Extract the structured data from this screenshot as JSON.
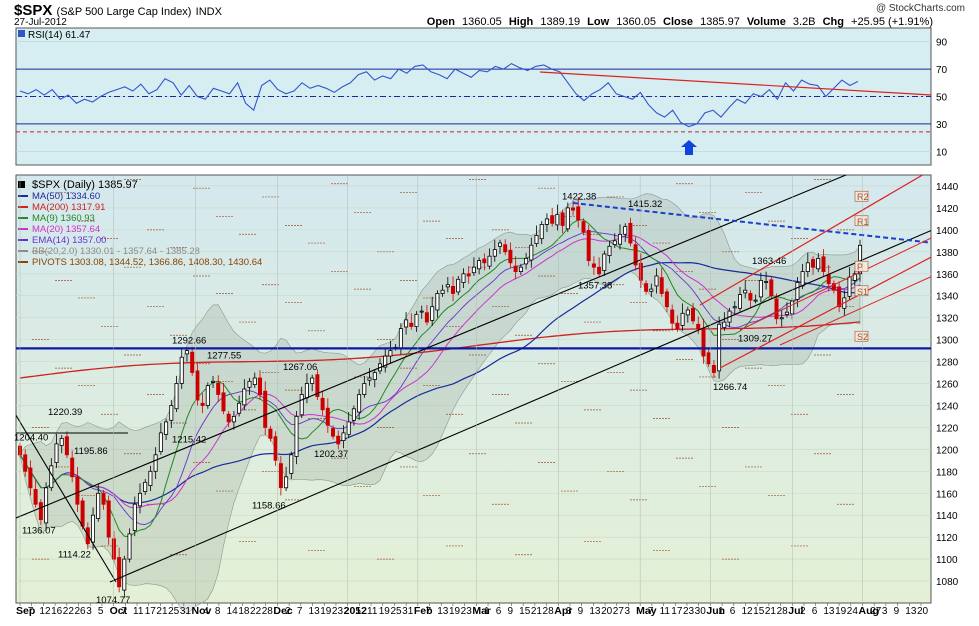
{
  "header": {
    "symbol": "$SPX",
    "name": "(S&P 500 Large Cap Index)",
    "exchange": "INDX",
    "date": "27-Jul-2012",
    "copyright": "@ StockCharts.com",
    "open_label": "Open",
    "open": "1360.05",
    "high_label": "High",
    "high": "1389.19",
    "low_label": "Low",
    "low": "1360.05",
    "close_label": "Close",
    "close": "1385.97",
    "volume_label": "Volume",
    "volume": "3.2B",
    "chg_label": "Chg",
    "chg": "+25.95 (+1.91%)"
  },
  "colors": {
    "rsi_bg": "#d6eef2",
    "price_bg": "#dcebdc",
    "candle_up": "#000000",
    "candle_down": "#cc0000",
    "rsi_line": "#3355cc",
    "ma50": "#1a2a99",
    "ma200": "#cc2222",
    "ma9": "#228822",
    "ma20": "#cc33cc",
    "support": "#0a1aa6",
    "trend_blue": "#1a3fcc",
    "channel_red": "#dd2222"
  },
  "chart_data": [
    {
      "type": "line",
      "title": "RSI(14) 61.47",
      "ylim": [
        0,
        100
      ],
      "ticks": [
        "90",
        "70",
        "50",
        "30",
        "10"
      ],
      "levels": [
        70,
        50,
        30
      ],
      "series": [
        {
          "name": "RSI(14)",
          "values": [
            54,
            52,
            55,
            51,
            55,
            48,
            51,
            45,
            48,
            46,
            50,
            53,
            55,
            57,
            54,
            59,
            52,
            55,
            63,
            60,
            51,
            58,
            50,
            48,
            56,
            54,
            52,
            60,
            45,
            40,
            58,
            62,
            55,
            52,
            54,
            60,
            56,
            58,
            56,
            53,
            57,
            60,
            66,
            68,
            62,
            65,
            63,
            70,
            67,
            72,
            73,
            68,
            66,
            63,
            70,
            67,
            64,
            69,
            68,
            72,
            70,
            74,
            71,
            69,
            72,
            73,
            70,
            68,
            60,
            52,
            47,
            52,
            55,
            60,
            52,
            50,
            48,
            53,
            44,
            38,
            35,
            40,
            31,
            28,
            30,
            38,
            40,
            35,
            42,
            48,
            45,
            52,
            50,
            55,
            48,
            60,
            54,
            62,
            59,
            58,
            50,
            56,
            62,
            58,
            61
          ]
        }
      ]
    },
    {
      "type": "candlestick",
      "title": "$SPX (Daily) 1385.97",
      "ylim": [
        1060,
        1450
      ],
      "y_ticks": [
        1080,
        1100,
        1120,
        1140,
        1160,
        1180,
        1200,
        1220,
        1240,
        1260,
        1280,
        1300,
        1320,
        1340,
        1360,
        1380,
        1400,
        1420,
        1440
      ],
      "x_tick_labels": [
        "Sep",
        "7",
        "12",
        "16",
        "22",
        "26",
        "3",
        "5",
        "Oct",
        "7",
        "11",
        "17",
        "21",
        "25",
        "31",
        "Nov",
        "4",
        "8",
        "14",
        "18",
        "22",
        "28",
        "Dec",
        "2",
        "7",
        "13",
        "19",
        "23",
        "2012",
        "5",
        "11",
        "19",
        "25",
        "31",
        "Feb",
        "7",
        "13",
        "19",
        "23",
        "Mar",
        "1",
        "6",
        "9",
        "15",
        "21",
        "28",
        "Apr",
        "3",
        "9",
        "13",
        "20",
        "27",
        "3",
        "May",
        "7",
        "11",
        "17",
        "23",
        "30",
        "Jun",
        "1",
        "6",
        "12",
        "15",
        "21",
        "28",
        "Jul",
        "2",
        "6",
        "13",
        "19",
        "24",
        "Aug",
        "27",
        "3",
        "9",
        "13",
        "20"
      ],
      "legend": [
        {
          "name": "$SPX (Daily) 1385.97",
          "color": "#000000"
        },
        {
          "name": "MA(50) 1334.60",
          "color": "#1a2a99"
        },
        {
          "name": "MA(200) 1317.91",
          "color": "#cc2222"
        },
        {
          "name": "MA(9) 1360.93",
          "color": "#228822"
        },
        {
          "name": "MA(20) 1357.64",
          "color": "#cc33cc"
        },
        {
          "name": "EMA(14) 1357.00",
          "color": "#6633cc"
        },
        {
          "name": "BB(20,2.0) 1330.01 - 1357.64 - 1385.28",
          "color": "#8a8a8a"
        },
        {
          "name": "PIVOTS 1303.08, 1344.52, 1366.86, 1408.30, 1430.64",
          "color": "#884400"
        }
      ],
      "annotations": [
        {
          "label": "1204.40",
          "value": 1204.4
        },
        {
          "label": "1220.39",
          "value": 1220.39
        },
        {
          "label": "1195.86",
          "value": 1195.86
        },
        {
          "label": "1136.07",
          "value": 1136.07
        },
        {
          "label": "1114.22",
          "value": 1114.22
        },
        {
          "label": "1074.77",
          "value": 1074.77
        },
        {
          "label": "1292.66",
          "value": 1292.66
        },
        {
          "label": "1277.55",
          "value": 1277.55
        },
        {
          "label": "1215.42",
          "value": 1215.42
        },
        {
          "label": "1267.06",
          "value": 1267.06
        },
        {
          "label": "1158.66",
          "value": 1158.66
        },
        {
          "label": "1202.37",
          "value": 1202.37
        },
        {
          "label": "1422.38",
          "value": 1422.38
        },
        {
          "label": "1415.32",
          "value": 1415.32
        },
        {
          "label": "1357.38",
          "value": 1357.38
        },
        {
          "label": "1363.46",
          "value": 1363.46
        },
        {
          "label": "1309.27",
          "value": 1309.27
        },
        {
          "label": "1266.74",
          "value": 1266.74
        }
      ],
      "pivot_labels": [
        "R2",
        "R1",
        "P",
        "S1",
        "S2"
      ],
      "pivots": [
        1430.64,
        1408.3,
        1366.86,
        1344.52,
        1303.08
      ],
      "support_level": 1292,
      "closes": [
        1195,
        1180,
        1165,
        1150,
        1136,
        1165,
        1185,
        1205,
        1210,
        1195,
        1175,
        1150,
        1130,
        1114,
        1140,
        1160,
        1150,
        1120,
        1100,
        1074.77,
        1100,
        1123,
        1150,
        1160,
        1170,
        1180,
        1195,
        1215,
        1225,
        1240,
        1260,
        1284,
        1290,
        1270,
        1245,
        1240,
        1258,
        1262,
        1250,
        1235,
        1225,
        1230,
        1242,
        1255,
        1262,
        1265,
        1250,
        1220,
        1210,
        1190,
        1165,
        1175,
        1195,
        1230,
        1250,
        1260,
        1265,
        1248,
        1236,
        1222,
        1212,
        1205,
        1215,
        1225,
        1237,
        1250,
        1260,
        1265,
        1270,
        1278,
        1285,
        1290,
        1293,
        1310,
        1318,
        1312,
        1323,
        1326,
        1316,
        1330,
        1342,
        1345,
        1350,
        1342,
        1355,
        1360,
        1358,
        1366,
        1372,
        1370,
        1376,
        1382,
        1388,
        1380,
        1370,
        1362,
        1366,
        1374,
        1386,
        1395,
        1405,
        1410,
        1406,
        1414,
        1404,
        1420,
        1418,
        1409,
        1398,
        1372,
        1366,
        1360,
        1378,
        1385,
        1390,
        1396,
        1403,
        1388,
        1368,
        1354,
        1344,
        1346,
        1358,
        1342,
        1330,
        1315,
        1310,
        1324,
        1327,
        1317,
        1310,
        1285,
        1278,
        1270,
        1314,
        1316,
        1326,
        1330,
        1341,
        1345,
        1336,
        1336,
        1354,
        1353,
        1340,
        1319,
        1320,
        1325,
        1335,
        1352,
        1362,
        1370,
        1366,
        1374,
        1362,
        1351,
        1345,
        1330,
        1338,
        1357,
        1360,
        1385.97
      ]
    }
  ]
}
